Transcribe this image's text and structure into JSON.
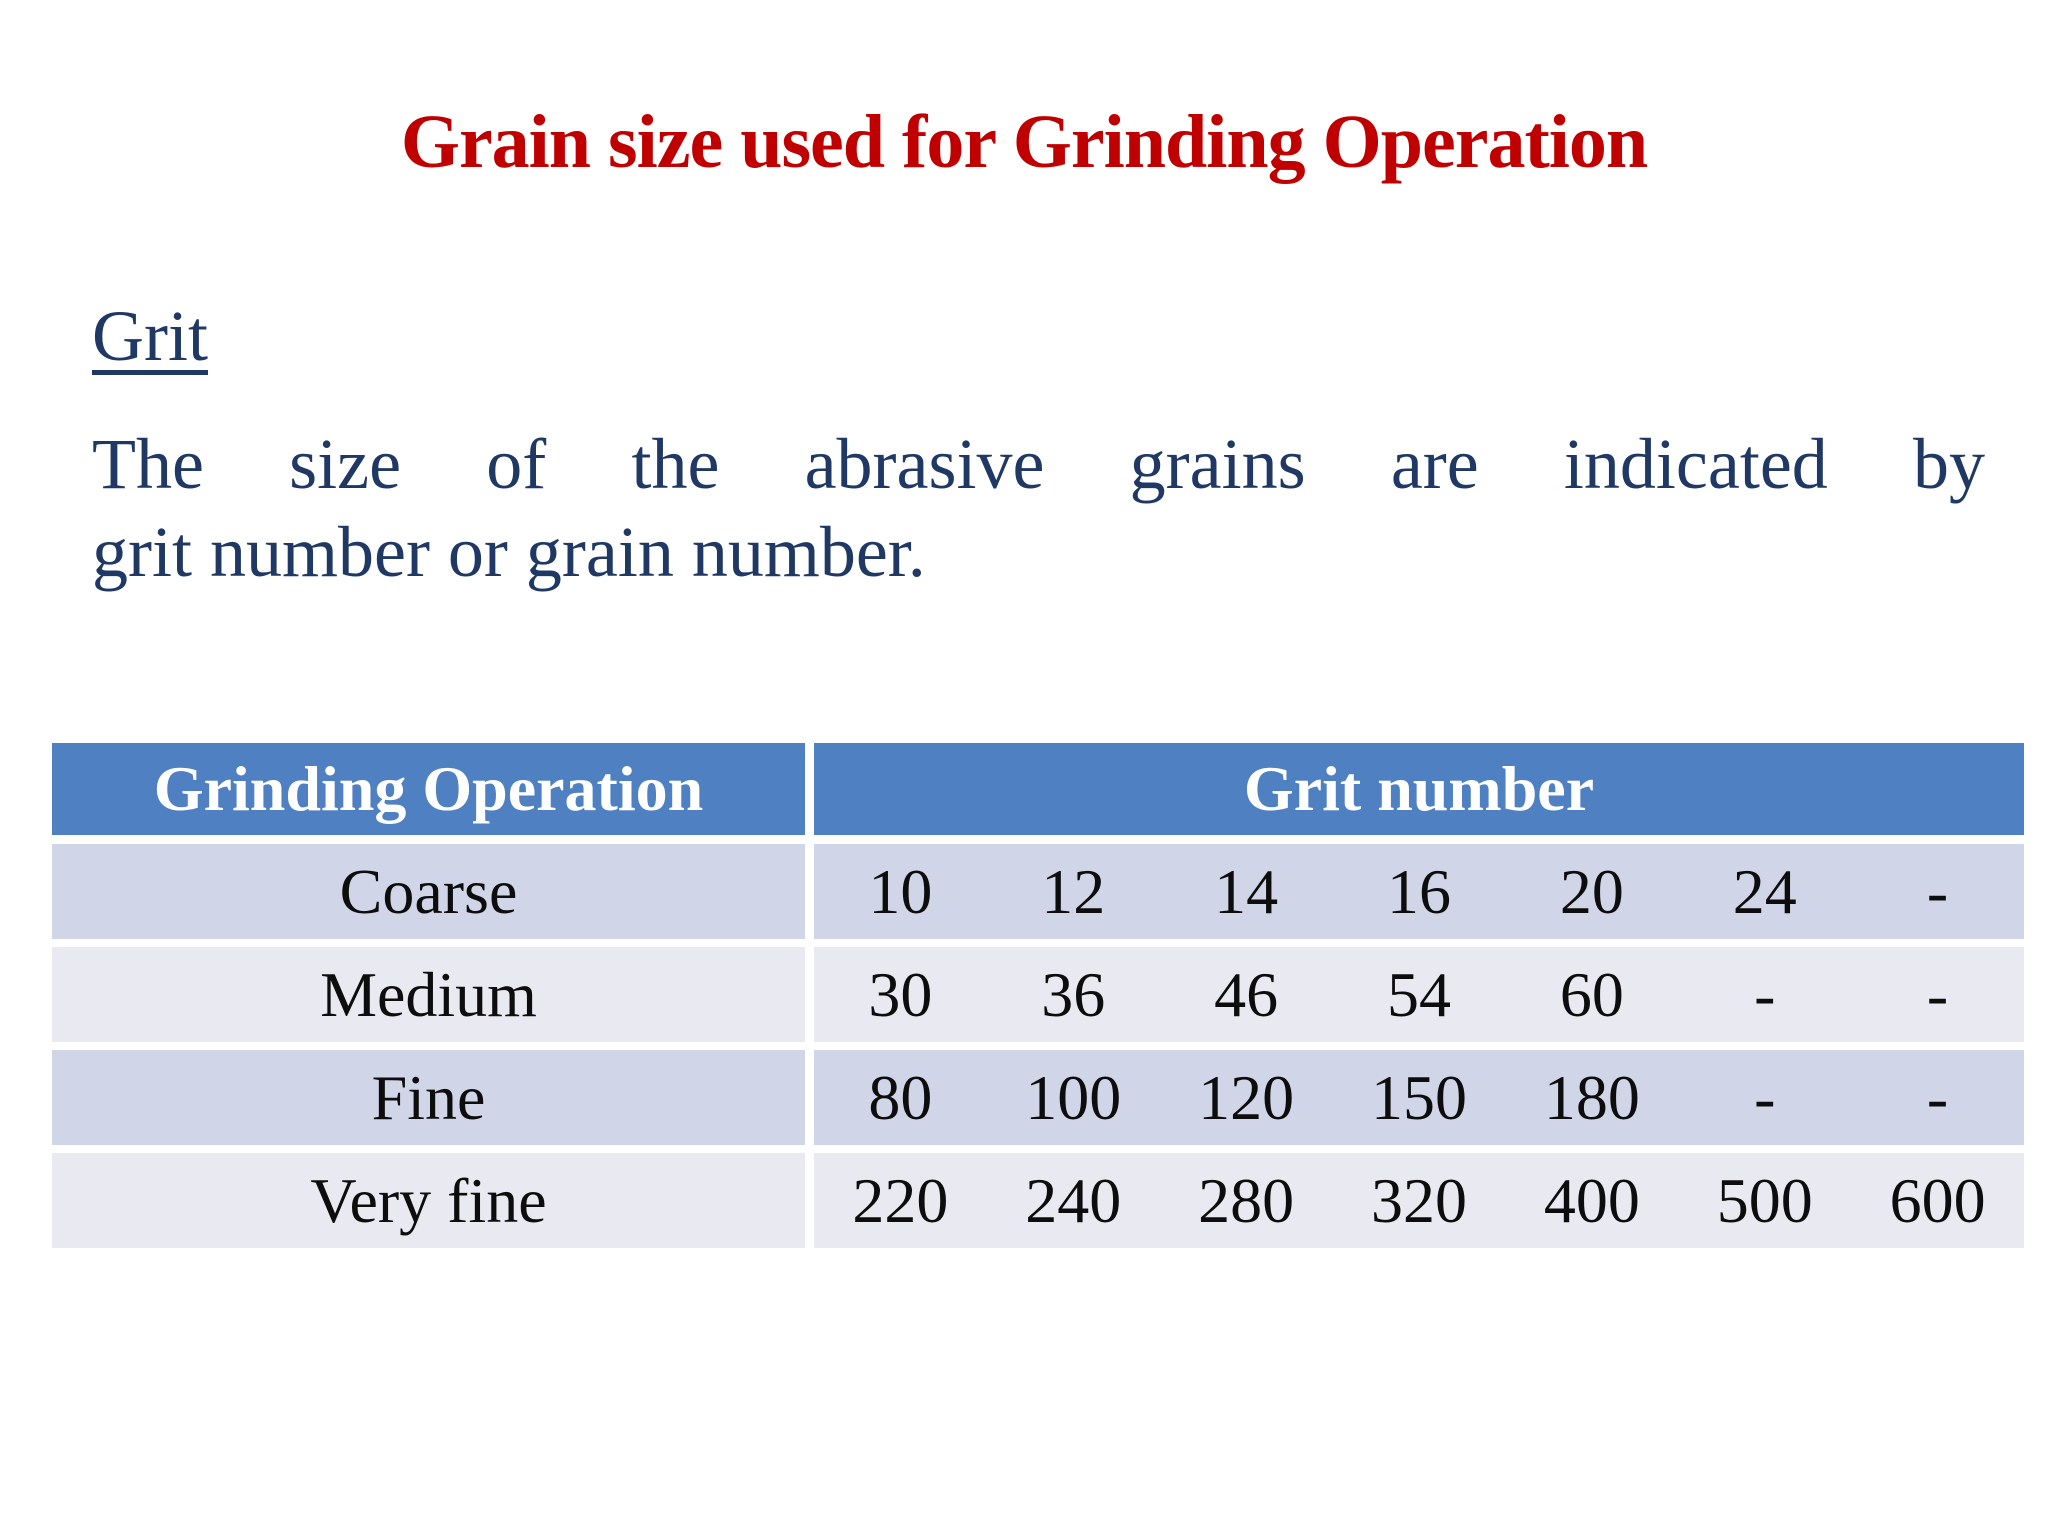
{
  "slide": {
    "title": "Grain size used for Grinding Operation",
    "heading": "Grit",
    "paragraph_lines": [
      "The size of the abrasive grains are indicated by",
      "grit number or grain number."
    ]
  },
  "table": {
    "columns": [
      "Grinding Operation",
      "Grit number"
    ],
    "rows": [
      {
        "operation": "Coarse",
        "grits": [
          "10",
          "12",
          "14",
          "16",
          "20",
          "24",
          "-"
        ]
      },
      {
        "operation": "Medium",
        "grits": [
          "30",
          "36",
          "46",
          "54",
          "60",
          "-",
          "-"
        ]
      },
      {
        "operation": "Fine",
        "grits": [
          "80",
          "100",
          "120",
          "150",
          "180",
          "-",
          "-"
        ]
      },
      {
        "operation": "Very fine",
        "grits": [
          "220",
          "240",
          "280",
          "320",
          "400",
          "500",
          "600"
        ]
      }
    ]
  },
  "colors": {
    "title_red": "#c00000",
    "body_navy": "#1f3864",
    "table_header_bg": "#4e80c2",
    "table_header_text": "#ffffff",
    "row_band_dark": "#d0d6e8",
    "row_band_light": "#e9eaf1",
    "cell_text": "#0d0d0d",
    "background": "#ffffff"
  }
}
